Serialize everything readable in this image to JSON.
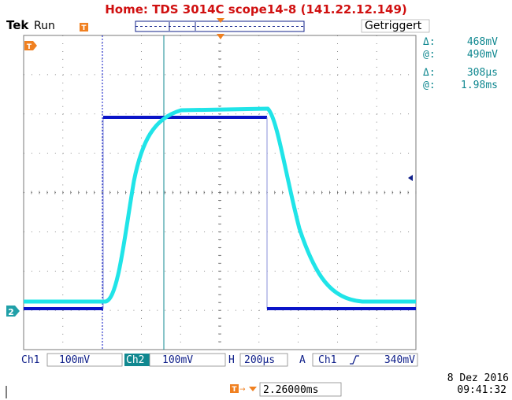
{
  "header": {
    "title": "Home:  TDS 3014C  scope14-8  (141.22.12.149)",
    "brand": "Tek",
    "run_state": "Run",
    "trigger_state": "Getriggert"
  },
  "cursors": {
    "volt_delta_symbol": "Δ:",
    "volt_delta": "468mV",
    "volt_at_symbol": "@:",
    "volt_at": "490mV",
    "time_delta_symbol": "Δ:",
    "time_delta": "308µs",
    "time_at_symbol": "@:",
    "time_at": "1.98ms"
  },
  "channels": {
    "ch1_label": "Ch1",
    "ch1_scale": "100mV",
    "ch2_label": "Ch2",
    "ch2_scale": "100mV",
    "timebase_label": "H",
    "timebase": "200µs",
    "acq_label": "A",
    "trigger_source": "Ch1",
    "trigger_slope_icon": "rising-edge-icon",
    "trigger_level": "340mV"
  },
  "footer": {
    "date": "8 Dez  2016",
    "time": "09:41:32",
    "trigger_position": "2.26000ms"
  },
  "markers": {
    "ch2_marker": "2"
  },
  "colors": {
    "ch1": "#0a14c8",
    "ch2": "#20e4e8",
    "title": "#d01010",
    "label_text": "#10208a",
    "trigger_marker": "#f08020"
  }
}
